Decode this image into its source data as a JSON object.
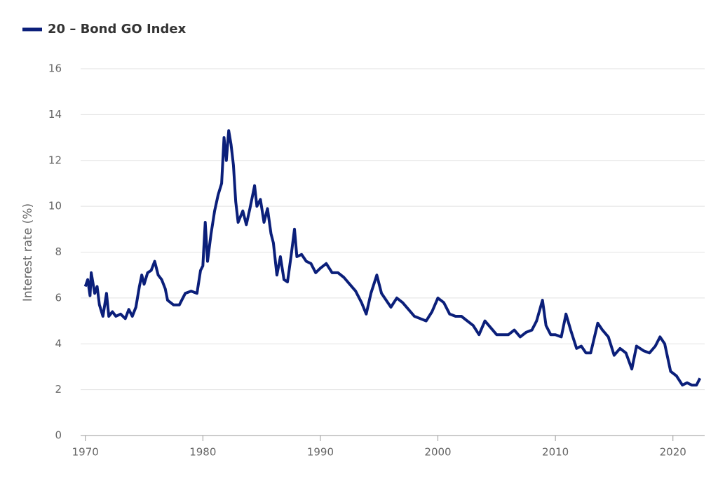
{
  "chart_data": {
    "type": "line",
    "y_label": "Interest rate (%)",
    "legend": "top-left",
    "grid": true,
    "xlim": [
      1969.6,
      2022.7
    ],
    "ylim": [
      0,
      16
    ],
    "xticks": [
      1970,
      1980,
      1990,
      2000,
      2010,
      2020
    ],
    "yticks": [
      0,
      2,
      4,
      6,
      8,
      10,
      12,
      14,
      16
    ],
    "x": [
      1970.0,
      1970.2,
      1970.4,
      1970.5,
      1970.8,
      1971.0,
      1971.2,
      1971.5,
      1971.8,
      1972.0,
      1972.3,
      1972.6,
      1973.0,
      1973.4,
      1973.7,
      1974.0,
      1974.3,
      1974.6,
      1974.8,
      1975.0,
      1975.3,
      1975.6,
      1975.9,
      1976.2,
      1976.5,
      1976.8,
      1977.0,
      1977.5,
      1978.0,
      1978.5,
      1979.0,
      1979.5,
      1979.8,
      1980.0,
      1980.2,
      1980.4,
      1980.7,
      1981.0,
      1981.3,
      1981.6,
      1981.8,
      1982.0,
      1982.2,
      1982.4,
      1982.6,
      1982.8,
      1983.0,
      1983.4,
      1983.7,
      1984.0,
      1984.4,
      1984.6,
      1984.9,
      1985.2,
      1985.5,
      1985.8,
      1986.0,
      1986.3,
      1986.6,
      1986.9,
      1987.2,
      1987.5,
      1987.8,
      1988.0,
      1988.4,
      1988.8,
      1989.2,
      1989.6,
      1990.0,
      1990.5,
      1991.0,
      1991.5,
      1992.0,
      1992.5,
      1993.0,
      1993.5,
      1993.9,
      1994.3,
      1994.8,
      1995.2,
      1995.6,
      1996.0,
      1996.5,
      1997.0,
      1997.5,
      1998.0,
      1998.5,
      1999.0,
      1999.5,
      2000.0,
      2000.5,
      2001.0,
      2001.5,
      2002.0,
      2002.5,
      2003.0,
      2003.5,
      2004.0,
      2004.5,
      2005.0,
      2005.5,
      2006.0,
      2006.5,
      2007.0,
      2007.5,
      2008.0,
      2008.4,
      2008.9,
      2009.2,
      2009.6,
      2010.0,
      2010.5,
      2010.9,
      2011.3,
      2011.8,
      2012.2,
      2012.6,
      2013.0,
      2013.6,
      2014.0,
      2014.5,
      2015.0,
      2015.5,
      2016.0,
      2016.5,
      2016.9,
      2017.5,
      2018.0,
      2018.5,
      2018.9,
      2019.3,
      2019.8,
      2020.3,
      2020.8,
      2021.2,
      2021.6,
      2022.0,
      2022.3
    ],
    "series": [
      {
        "name": "20 – Bond GO Index",
        "color": "#0b1f7a",
        "values": [
          6.5,
          6.8,
          6.1,
          7.1,
          6.2,
          6.5,
          5.7,
          5.2,
          6.2,
          5.2,
          5.4,
          5.2,
          5.3,
          5.1,
          5.5,
          5.2,
          5.6,
          6.5,
          7.0,
          6.6,
          7.1,
          7.2,
          7.6,
          7.0,
          6.8,
          6.4,
          5.9,
          5.7,
          5.7,
          6.2,
          6.3,
          6.2,
          7.2,
          7.4,
          9.3,
          7.6,
          8.8,
          9.8,
          10.5,
          11.0,
          13.0,
          12.0,
          13.3,
          12.7,
          11.8,
          10.2,
          9.3,
          9.8,
          9.2,
          9.9,
          10.9,
          10.0,
          10.3,
          9.3,
          9.9,
          8.8,
          8.4,
          7.0,
          7.8,
          6.8,
          6.7,
          7.8,
          9.0,
          7.8,
          7.9,
          7.6,
          7.5,
          7.1,
          7.3,
          7.5,
          7.1,
          7.1,
          6.9,
          6.6,
          6.3,
          5.8,
          5.3,
          6.2,
          7.0,
          6.2,
          5.9,
          5.6,
          6.0,
          5.8,
          5.5,
          5.2,
          5.1,
          5.0,
          5.4,
          6.0,
          5.8,
          5.3,
          5.2,
          5.2,
          5.0,
          4.8,
          4.4,
          5.0,
          4.7,
          4.4,
          4.4,
          4.4,
          4.6,
          4.3,
          4.5,
          4.6,
          5.0,
          5.9,
          4.8,
          4.4,
          4.4,
          4.3,
          5.3,
          4.6,
          3.8,
          3.9,
          3.6,
          3.6,
          4.9,
          4.6,
          4.3,
          3.5,
          3.8,
          3.6,
          2.9,
          3.9,
          3.7,
          3.6,
          3.9,
          4.3,
          4.0,
          2.8,
          2.6,
          2.2,
          2.3,
          2.2,
          2.2,
          2.5
        ]
      }
    ]
  }
}
